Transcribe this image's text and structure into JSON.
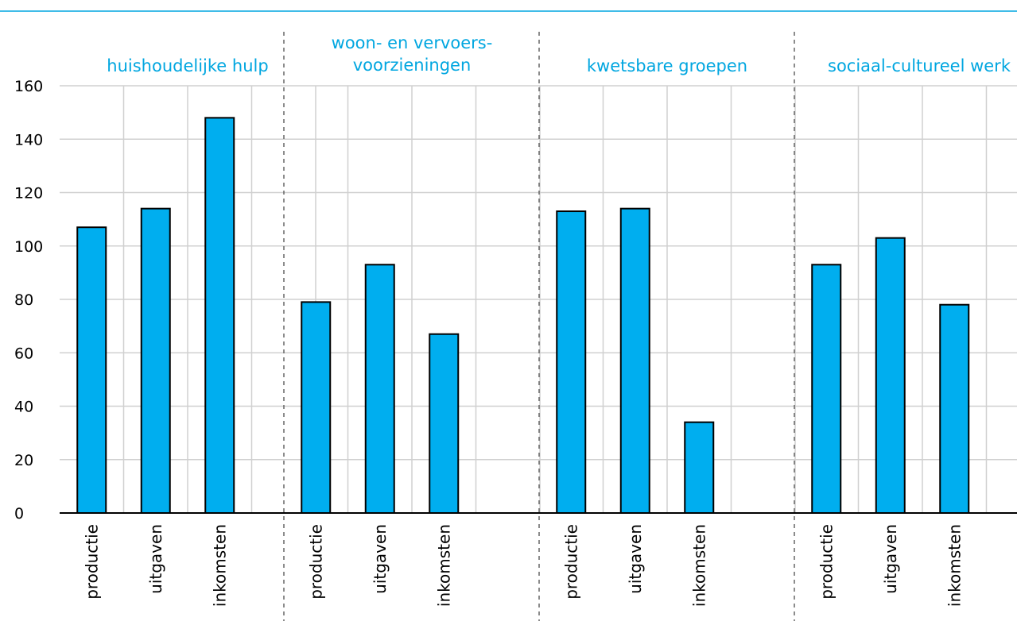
{
  "chart_data": {
    "type": "bar",
    "ylim": [
      0,
      160
    ],
    "yticks": [
      0,
      20,
      40,
      60,
      80,
      100,
      120,
      140,
      160
    ],
    "grid": true,
    "colors": {
      "bar": "#00aeef",
      "title": "#00a6e0",
      "grid": "#d0d0d0"
    },
    "groups": [
      {
        "title_lines": [
          "huishoudelijke hulp"
        ],
        "categories": [
          "productie",
          "uitgaven",
          "inkomsten"
        ],
        "values": [
          107,
          114,
          148
        ]
      },
      {
        "title_lines": [
          "woon- en vervoers-",
          "voorzieningen"
        ],
        "categories": [
          "productie",
          "uitgaven",
          "inkomsten"
        ],
        "values": [
          79,
          93,
          67
        ]
      },
      {
        "title_lines": [
          "kwetsbare groepen"
        ],
        "categories": [
          "productie",
          "uitgaven",
          "inkomsten"
        ],
        "values": [
          113,
          114,
          34
        ]
      },
      {
        "title_lines": [
          "sociaal-cultureel werk"
        ],
        "categories": [
          "productie",
          "uitgaven",
          "inkomsten"
        ],
        "values": [
          93,
          103,
          78
        ]
      }
    ]
  }
}
